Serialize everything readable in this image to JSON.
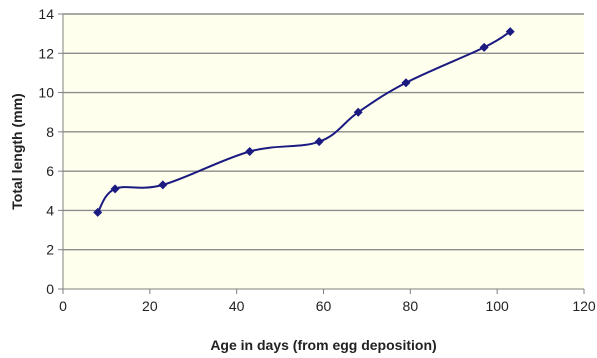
{
  "chart_data": {
    "type": "line",
    "title": "",
    "xlabel": "Age in days (from egg deposition)",
    "ylabel": "Total length (mm)",
    "xlim": [
      0,
      120
    ],
    "ylim": [
      0,
      14
    ],
    "x_ticks": [
      0,
      20,
      40,
      60,
      80,
      100,
      120
    ],
    "y_ticks": [
      0,
      2,
      4,
      6,
      8,
      10,
      12,
      14
    ],
    "grid": "horizontal",
    "legend": "none",
    "plot_background": "#ffffee",
    "series": [
      {
        "color": "#1a1a80",
        "marker": "diamond",
        "smooth": true,
        "points": [
          {
            "x": 8,
            "y": 3.9
          },
          {
            "x": 12,
            "y": 5.1
          },
          {
            "x": 23,
            "y": 5.3
          },
          {
            "x": 43,
            "y": 7.0
          },
          {
            "x": 59,
            "y": 7.5
          },
          {
            "x": 68,
            "y": 9.0
          },
          {
            "x": 79,
            "y": 10.5
          },
          {
            "x": 97,
            "y": 12.3
          },
          {
            "x": 103,
            "y": 13.1
          }
        ]
      }
    ]
  }
}
